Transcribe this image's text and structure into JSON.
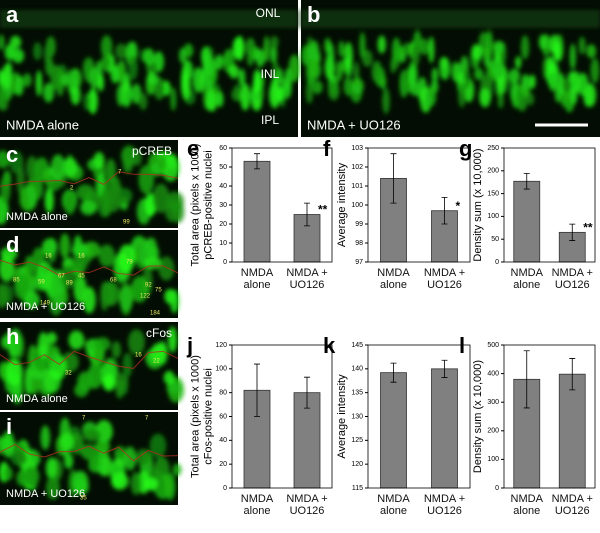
{
  "panels": [
    {
      "letter": "a",
      "labels": [
        "ONL",
        "INL",
        "IPL"
      ],
      "caption": "NMDA alone",
      "numbers": []
    },
    {
      "letter": "b",
      "labels": [],
      "caption": "NMDA + UO126",
      "numbers": []
    },
    {
      "letter": "c",
      "labels": [
        "pCREB"
      ],
      "caption": "NMDA alone",
      "numbers": [
        "7",
        "2",
        "99"
      ]
    },
    {
      "letter": "d",
      "labels": [],
      "caption": "NMDA + UO126",
      "numbers": [
        "16",
        "16",
        "79",
        "85",
        "59",
        "67",
        "89",
        "45",
        "68",
        "92",
        "75",
        "122",
        "149",
        "184"
      ]
    },
    {
      "letter": "h",
      "labels": [
        "cFos"
      ],
      "caption": "NMDA alone",
      "numbers": [
        "16",
        "22",
        "32"
      ]
    },
    {
      "letter": "i",
      "labels": [],
      "caption": "NMDA + UO126",
      "numbers": [
        "7",
        "7",
        "35"
      ]
    }
  ],
  "chart_data": [
    {
      "type": "bar",
      "letter": "e",
      "ylabel": [
        "Total area (pixels x 1000)",
        "pCREB-positive nuclei"
      ],
      "categories": [
        "NMDA alone",
        "NMDA + UO126"
      ],
      "values": [
        53,
        25
      ],
      "errors": [
        4,
        6
      ],
      "annotations": [
        null,
        "**"
      ],
      "ylim": [
        0,
        60
      ],
      "yticks": [
        0,
        10,
        20,
        30,
        40,
        50,
        60
      ],
      "color": "#808080"
    },
    {
      "type": "bar",
      "letter": "f",
      "ylabel": [
        "Average intensity"
      ],
      "categories": [
        "NMDA alone",
        "NMDA + UO126"
      ],
      "values": [
        101.4,
        99.7
      ],
      "errors": [
        1.3,
        0.7
      ],
      "annotations": [
        null,
        "*"
      ],
      "ylim": [
        97,
        103
      ],
      "yticks": [
        97,
        98,
        99,
        100,
        101,
        102,
        103
      ],
      "color": "#808080"
    },
    {
      "type": "bar",
      "letter": "g",
      "ylabel": [
        "Density sum (x 10,000)"
      ],
      "categories": [
        "NMDA alone",
        "NMDA + UO126"
      ],
      "values": [
        177,
        65
      ],
      "errors": [
        17,
        18
      ],
      "annotations": [
        null,
        "**"
      ],
      "ylim": [
        0,
        250
      ],
      "yticks": [
        0,
        50,
        100,
        150,
        200,
        250
      ],
      "color": "#808080"
    },
    {
      "type": "bar",
      "letter": "j",
      "ylabel": [
        "Total area (pixels x 1000)",
        "cFos-positive nuclei"
      ],
      "categories": [
        "NMDA alone",
        "NMDA + UO126"
      ],
      "values": [
        82,
        80
      ],
      "errors": [
        22,
        13
      ],
      "annotations": [
        null,
        null
      ],
      "ylim": [
        0,
        120
      ],
      "yticks": [
        0,
        20,
        40,
        60,
        80,
        100,
        120
      ],
      "color": "#808080"
    },
    {
      "type": "bar",
      "letter": "k",
      "ylabel": [
        "Average intensity"
      ],
      "categories": [
        "NMDA alone",
        "NMDA + UO126"
      ],
      "values": [
        139.2,
        140
      ],
      "errors": [
        2,
        1.8
      ],
      "annotations": [
        null,
        null
      ],
      "ylim": [
        115,
        145
      ],
      "yticks": [
        115,
        120,
        125,
        130,
        135,
        140,
        145
      ],
      "color": "#808080"
    },
    {
      "type": "bar",
      "letter": "l",
      "ylabel": [
        "Density sum (x 10,000)"
      ],
      "categories": [
        "NMDA alone",
        "NMDA + UO126"
      ],
      "values": [
        380,
        398
      ],
      "errors": [
        100,
        55
      ],
      "annotations": [
        null,
        null
      ],
      "ylim": [
        0,
        500
      ],
      "yticks": [
        0,
        100,
        200,
        300,
        400,
        500
      ],
      "color": "#808080"
    }
  ]
}
